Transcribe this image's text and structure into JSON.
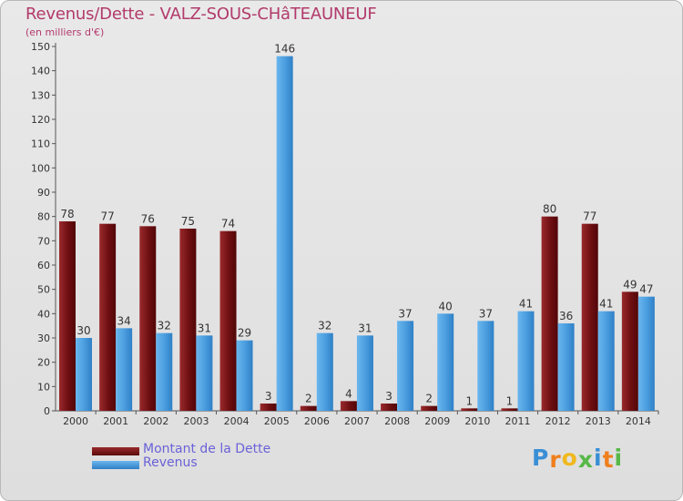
{
  "header": {
    "title": "Revenus/Dette - VALZ-SOUS-CHâTEAUNEUF",
    "subtitle": "(en milliers d'€)"
  },
  "chart_data": {
    "type": "bar",
    "title": "Revenus/Dette - VALZ-SOUS-CHâTEAUNEUF",
    "ylabel": "(en milliers d'€)",
    "xlabel": "",
    "ylim": [
      0,
      150
    ],
    "ytick_step": 10,
    "grid": false,
    "legend_position": "bottom-left",
    "categories": [
      "2000",
      "2001",
      "2002",
      "2003",
      "2004",
      "2005",
      "2006",
      "2007",
      "2008",
      "2009",
      "2010",
      "2011",
      "2012",
      "2013",
      "2014"
    ],
    "series": [
      {
        "name": "Montant de la Dette",
        "color": "#7a1416",
        "values": [
          78,
          77,
          76,
          75,
          74,
          3,
          2,
          4,
          3,
          2,
          1,
          1,
          80,
          77,
          49
        ]
      },
      {
        "name": "Revenus",
        "color": "#4fa4e4",
        "values": [
          30,
          34,
          32,
          31,
          29,
          146,
          32,
          31,
          37,
          40,
          37,
          41,
          36,
          41,
          47
        ]
      }
    ]
  },
  "legend": {
    "items": [
      {
        "label": "Montant de la Dette",
        "color": "#7a1416"
      },
      {
        "label": "Revenus",
        "color": "#4fa4e4"
      }
    ]
  },
  "logo": {
    "letters": [
      "P",
      "r",
      "o",
      "x",
      "i",
      "t",
      "i"
    ],
    "colors": [
      "#3a8fd6",
      "#f07f1e",
      "#f0b81e",
      "#56b848",
      "#3a8fd6",
      "#f07f1e",
      "#56b848"
    ]
  }
}
